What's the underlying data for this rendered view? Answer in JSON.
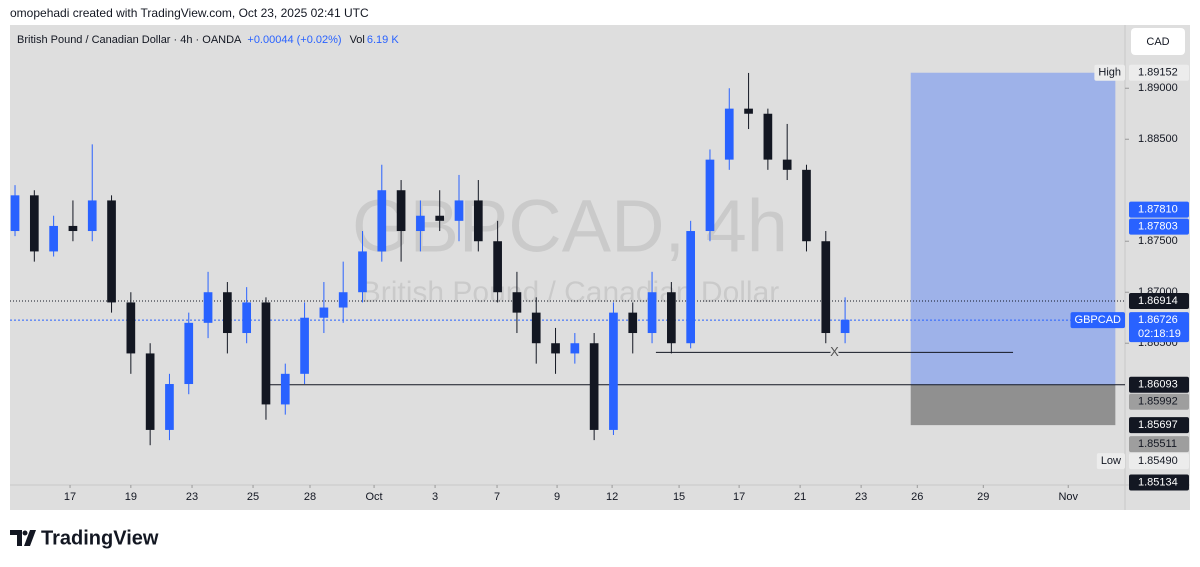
{
  "header": {
    "credit": "omopehadi created with TradingView.com, Oct 23, 2025 02:41 UTC"
  },
  "legend": {
    "symbol": "British Pound / Canadian Dollar · 4h · OANDA",
    "change": "+0.00044 (+0.02%)",
    "vol_label": "Vol",
    "vol": "6.19 K"
  },
  "currency_button": "CAD",
  "brand": "TradingView",
  "chart_data": {
    "type": "candlestick",
    "watermark": {
      "title": "GBPCAD, 4h",
      "subtitle": "British Pound / Canadian Dollar"
    },
    "up_color": "#2962ff",
    "down_color": "#131722",
    "open": [
      1.876,
      1.8795,
      1.874,
      1.8765,
      1.876,
      1.879,
      1.869,
      1.864,
      1.8565,
      1.861,
      1.867,
      1.87,
      1.866,
      1.869,
      1.859,
      1.862,
      1.8675,
      1.8685,
      1.87,
      1.874,
      1.88,
      1.876,
      1.8775,
      1.877,
      1.879,
      1.875,
      1.87,
      1.868,
      1.865,
      1.864,
      1.865,
      1.8565,
      1.868,
      1.866,
      1.87,
      1.865,
      1.876,
      1.883,
      1.888,
      1.8875,
      1.883,
      1.882,
      1.875,
      1.866
    ],
    "high": [
      1.8805,
      1.88,
      1.8775,
      1.879,
      1.8845,
      1.8795,
      1.87,
      1.865,
      1.862,
      1.868,
      1.872,
      1.871,
      1.8705,
      1.8695,
      1.863,
      1.869,
      1.871,
      1.873,
      1.876,
      1.8825,
      1.881,
      1.879,
      1.88,
      1.8815,
      1.881,
      1.877,
      1.872,
      1.8695,
      1.8665,
      1.866,
      1.866,
      1.869,
      1.869,
      1.872,
      1.871,
      1.877,
      1.884,
      1.89,
      1.8915,
      1.888,
      1.8865,
      1.8825,
      1.876,
      1.8695
    ],
    "low": [
      1.8755,
      1.873,
      1.8735,
      1.875,
      1.875,
      1.868,
      1.862,
      1.855,
      1.8555,
      1.86,
      1.8655,
      1.864,
      1.865,
      1.8575,
      1.858,
      1.861,
      1.866,
      1.867,
      1.869,
      1.873,
      1.873,
      1.874,
      1.876,
      1.875,
      1.874,
      1.869,
      1.866,
      1.863,
      1.862,
      1.863,
      1.8555,
      1.856,
      1.864,
      1.865,
      1.864,
      1.8645,
      1.875,
      1.882,
      1.886,
      1.882,
      1.881,
      1.874,
      1.865,
      1.865
    ],
    "close": [
      1.8795,
      1.874,
      1.8765,
      1.876,
      1.879,
      1.869,
      1.864,
      1.8565,
      1.861,
      1.867,
      1.87,
      1.866,
      1.869,
      1.859,
      1.862,
      1.8675,
      1.8685,
      1.87,
      1.874,
      1.88,
      1.876,
      1.8775,
      1.877,
      1.879,
      1.875,
      1.87,
      1.868,
      1.865,
      1.864,
      1.865,
      1.8565,
      1.868,
      1.866,
      1.87,
      1.865,
      1.876,
      1.883,
      1.888,
      1.8875,
      1.883,
      1.882,
      1.875,
      1.866,
      1.8673
    ],
    "xlim": [
      -0.26,
      57.5
    ],
    "xticks": [
      {
        "value": 2.85,
        "label": "17"
      },
      {
        "value": 6.0,
        "label": "19"
      },
      {
        "value": 9.17,
        "label": "23"
      },
      {
        "value": 12.33,
        "label": "25"
      },
      {
        "value": 15.28,
        "label": "28"
      },
      {
        "value": 18.6,
        "label": "Oct"
      },
      {
        "value": 21.76,
        "label": "3"
      },
      {
        "value": 24.97,
        "label": "7"
      },
      {
        "value": 28.08,
        "label": "9"
      },
      {
        "value": 30.93,
        "label": "12"
      },
      {
        "value": 34.4,
        "label": "15"
      },
      {
        "value": 37.51,
        "label": "17"
      },
      {
        "value": 40.67,
        "label": "21"
      },
      {
        "value": 43.83,
        "label": "23"
      },
      {
        "value": 46.74,
        "label": "26"
      },
      {
        "value": 50.16,
        "label": "29"
      },
      {
        "value": 54.56,
        "label": "Nov"
      }
    ],
    "ylim": [
      1.8511,
      1.8962
    ],
    "yticks": [
      {
        "value": 1.89,
        "label": "1.89000"
      },
      {
        "value": 1.885,
        "label": "1.88500"
      },
      {
        "value": 1.875,
        "label": "1.87500"
      },
      {
        "value": 1.87,
        "label": "1.87000"
      },
      {
        "value": 1.865,
        "label": "1.86500"
      }
    ],
    "grid": false,
    "levels": [
      {
        "price": 1.89152,
        "tag": "High",
        "style": "light"
      },
      {
        "price": {
          "value": 1.8781,
          "label": "1.87810"
        },
        "style": "blue"
      },
      {
        "price": 1.87803,
        "style": "blue"
      },
      {
        "price": 1.86914,
        "style": "dark",
        "line": "dotted"
      },
      {
        "price": 1.86726,
        "tag": "GBPCAD",
        "countdown": "02:18:19",
        "style": "blue",
        "line": "blue-dotted"
      },
      {
        "price": 1.86093,
        "style": "dark"
      },
      {
        "price": 1.85992,
        "style": "grey"
      },
      {
        "price": 1.85697,
        "style": "dark"
      },
      {
        "price": 1.85511,
        "style": "grey"
      },
      {
        "price": {
          "value": 1.8549,
          "label": "1.85490"
        },
        "tag": "Low",
        "style": "light"
      },
      {
        "price": 1.85134,
        "style": "dark"
      }
    ],
    "drawings": [
      {
        "price": 1.86093,
        "x": [
          13.2,
          57.5
        ]
      },
      {
        "price": 1.8641,
        "x": [
          33.2,
          51.7
        ],
        "label": "X"
      }
    ],
    "position": {
      "x": [
        46.4,
        57.0
      ],
      "target": 1.89152,
      "entry": 1.86093,
      "stop": 1.85697
    }
  }
}
